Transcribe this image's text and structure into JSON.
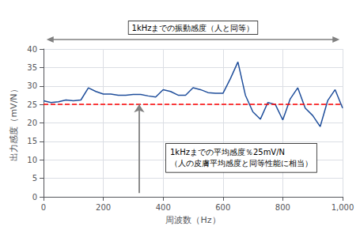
{
  "chart_data": {
    "type": "line",
    "x": [
      0,
      25,
      50,
      75,
      100,
      125,
      150,
      175,
      200,
      225,
      250,
      275,
      300,
      325,
      350,
      375,
      400,
      425,
      450,
      475,
      500,
      525,
      550,
      575,
      600,
      625,
      650,
      675,
      700,
      725,
      750,
      775,
      800,
      825,
      850,
      875,
      900,
      925,
      950,
      975,
      1000
    ],
    "values": [
      26.0,
      25.5,
      25.7,
      26.2,
      26.0,
      26.2,
      29.5,
      28.5,
      27.8,
      27.8,
      27.5,
      27.5,
      27.7,
      27.7,
      27.3,
      27.0,
      29.0,
      28.5,
      27.5,
      27.5,
      29.5,
      29.0,
      28.2,
      28.0,
      28.0,
      32.0,
      36.5,
      27.5,
      23.0,
      21.0,
      25.5,
      25.0,
      20.8,
      26.5,
      29.5,
      24.0,
      22.0,
      19.0,
      26.0,
      29.0,
      24.0
    ],
    "color": "#1f4e9b",
    "xlim": [
      0,
      1000
    ],
    "ylim": [
      0,
      40
    ],
    "xticks": [
      0,
      200,
      400,
      600,
      800,
      1000
    ],
    "yticks": [
      0,
      5,
      10,
      15,
      20,
      25,
      30,
      35,
      40
    ],
    "xlabel": "周波数（Hz）",
    "ylabel": "出力感度（mV/N）",
    "grid": true,
    "hlines": [
      {
        "y": 25,
        "color": "#ff0000",
        "line_style": "dashed"
      }
    ],
    "arrows": [
      {
        "x": 320,
        "y_start": 1,
        "y_end": 25,
        "color": "#808080"
      }
    ],
    "annotations": [
      {
        "text": "1kHzまでの振動感度（人と同等）",
        "arrow": "double",
        "color": "#808080"
      },
      {
        "text": [
          "1kHzまでの平均感度％25mV/N",
          "（人の皮膚平均感度と同等性能に相当）"
        ]
      }
    ]
  }
}
